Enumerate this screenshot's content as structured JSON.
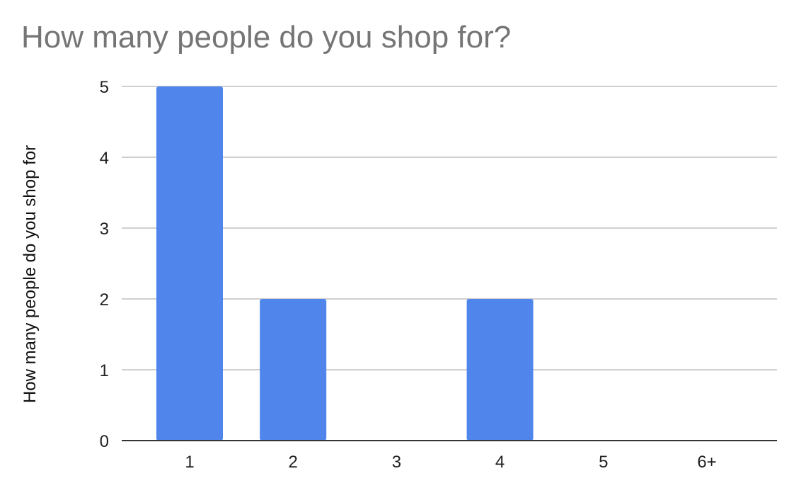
{
  "chart_data": {
    "type": "bar",
    "title": "How many people do you shop for?",
    "xlabel": "",
    "ylabel": "How many people do you shop for",
    "categories": [
      "1",
      "2",
      "3",
      "4",
      "5",
      "6+"
    ],
    "values": [
      5,
      2,
      0,
      2,
      0,
      0
    ],
    "ylim": [
      0,
      5
    ],
    "yticks": [
      "0",
      "1",
      "2",
      "3",
      "4",
      "5"
    ],
    "grid": true,
    "legend": "none",
    "colors": {
      "bar": "#5086ec",
      "grid": "#d0d0d0",
      "axis": "#333333"
    }
  }
}
